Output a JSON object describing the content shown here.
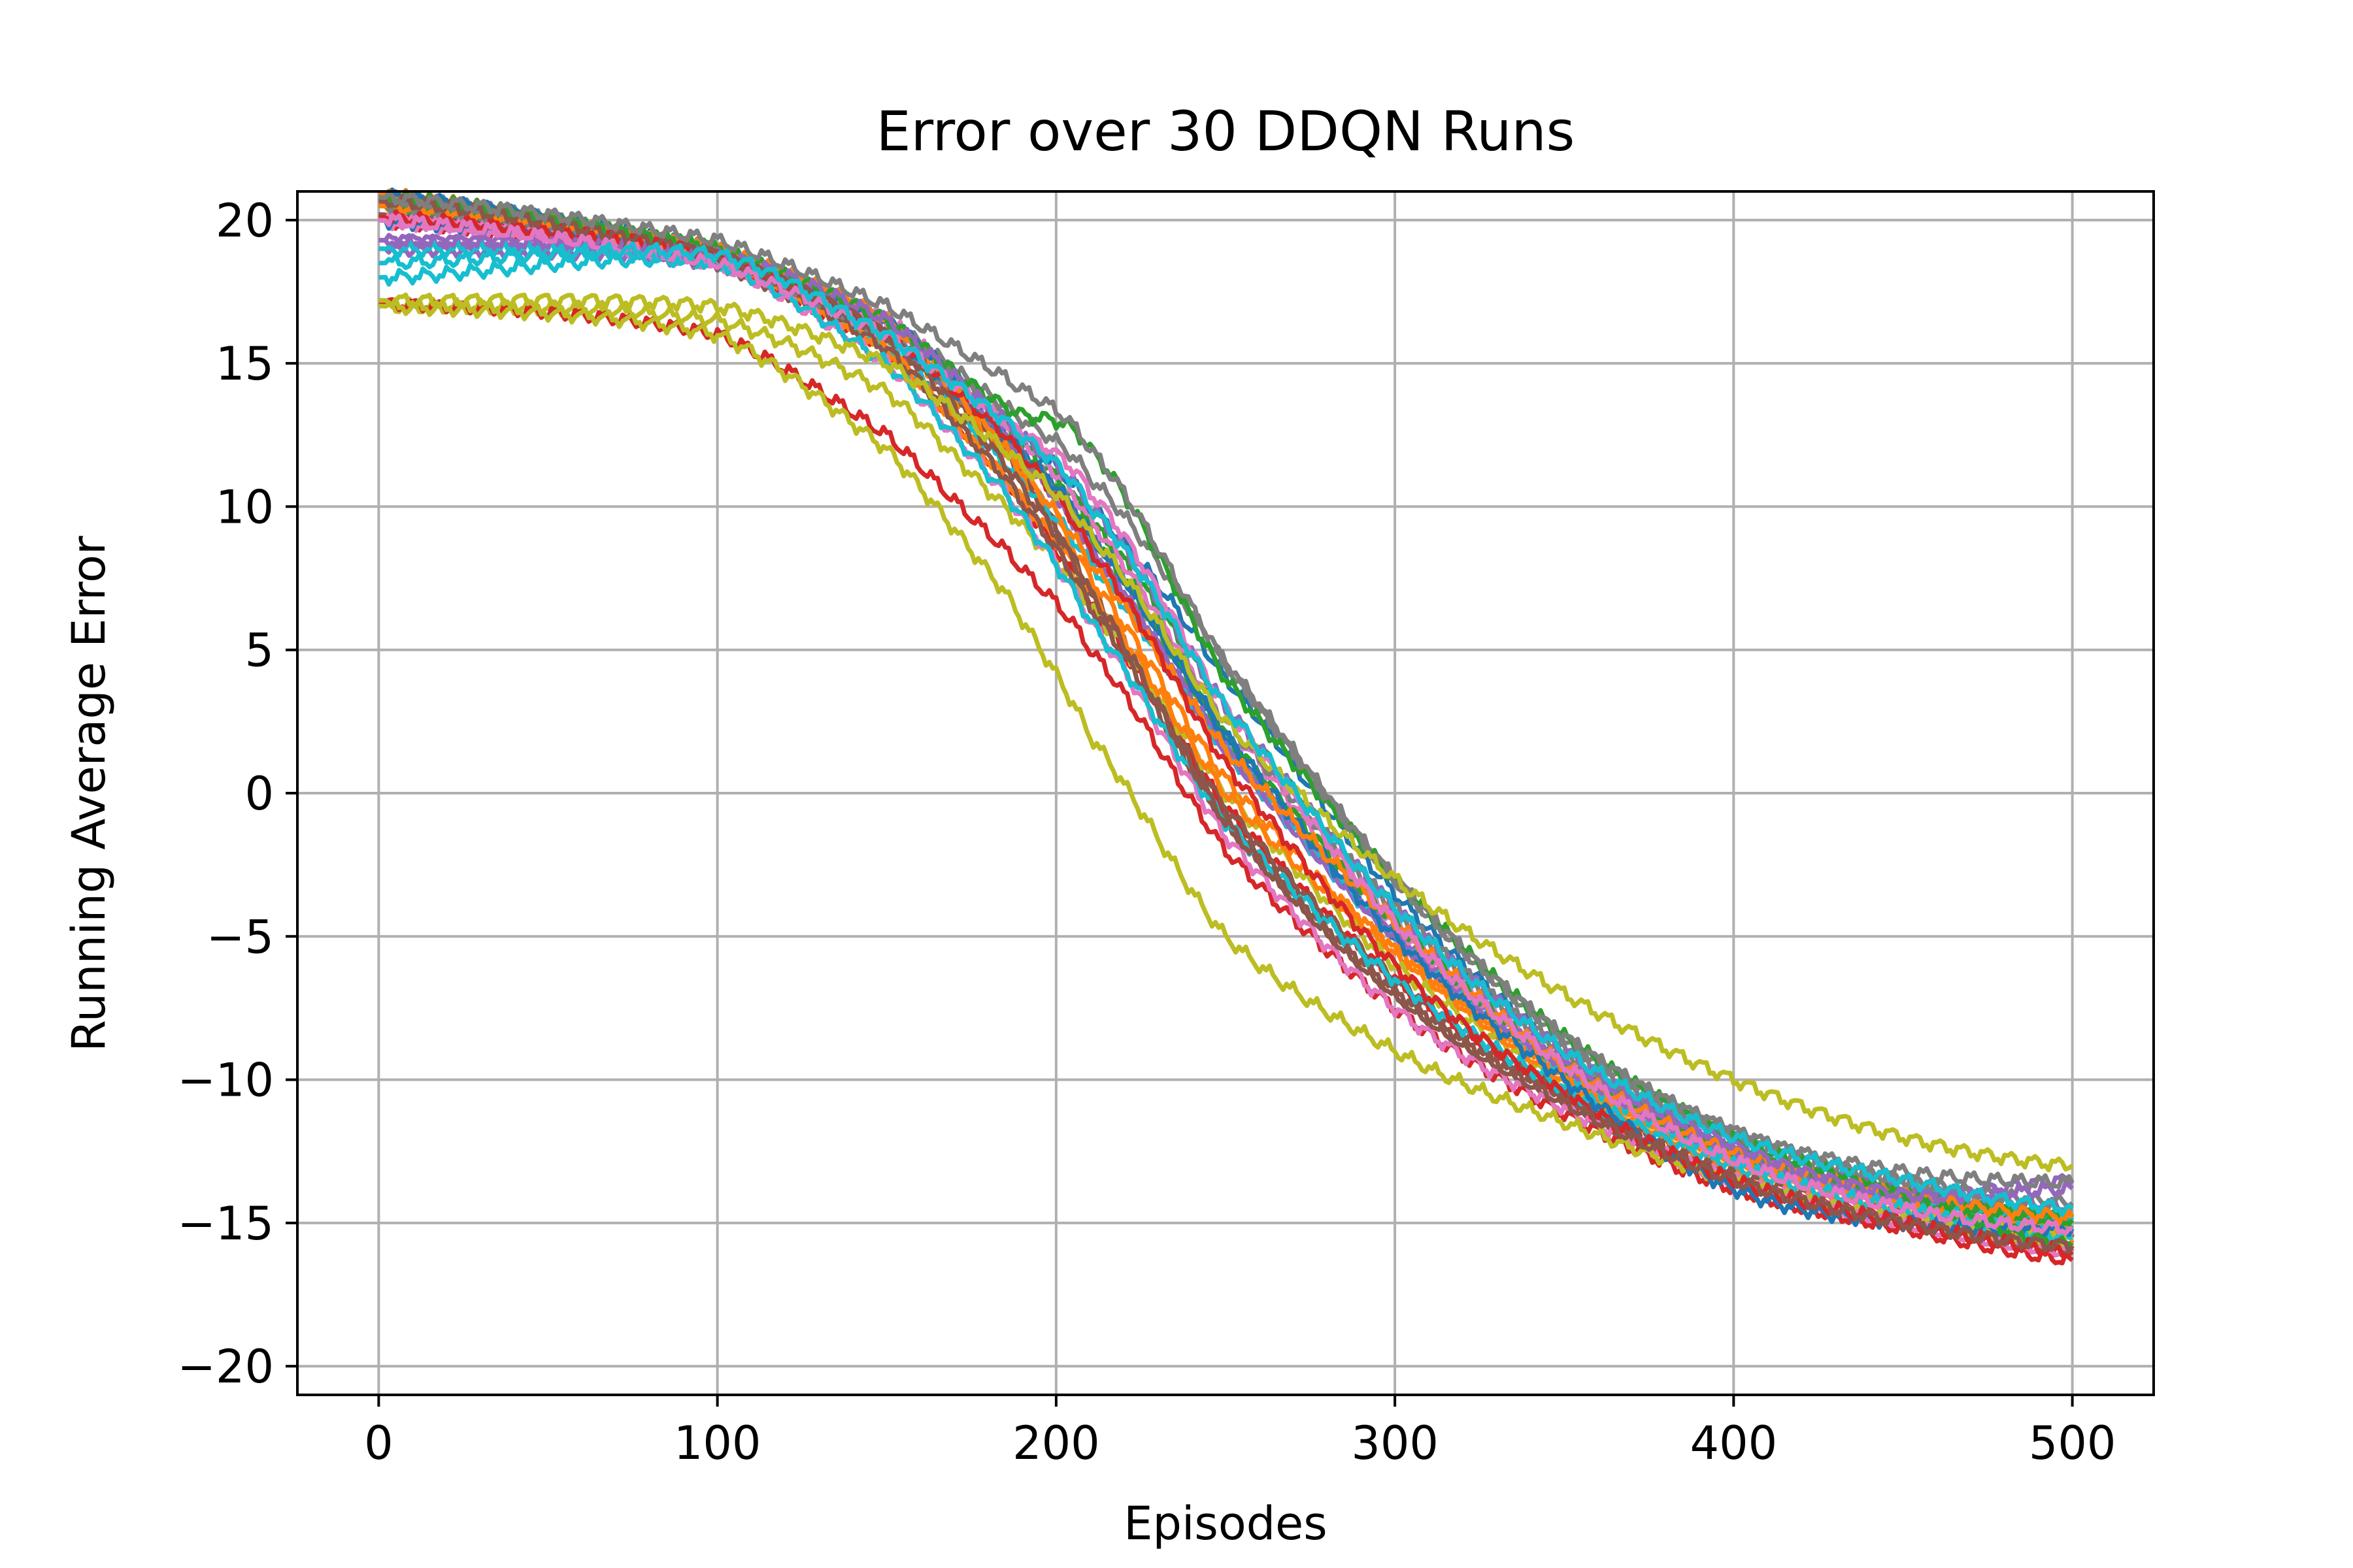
{
  "chart_data": {
    "type": "line",
    "title": "Error over 30 DDQN Runs",
    "xlabel": "Episodes",
    "ylabel": "Running Average Error",
    "xlim": [
      -24,
      524
    ],
    "ylim": [
      -21,
      21
    ],
    "xticks": [
      0,
      100,
      200,
      300,
      400,
      500
    ],
    "yticks": [
      20,
      15,
      10,
      5,
      0,
      -5,
      -10,
      -15,
      -20
    ],
    "xtick_labels": [
      "0",
      "100",
      "200",
      "300",
      "400",
      "500"
    ],
    "ytick_labels": [
      "20",
      "15",
      "10",
      "5",
      "0",
      "−5",
      "−10",
      "−15",
      "−20"
    ],
    "grid": true,
    "legend": "none",
    "palette": [
      "#1f77b4",
      "#ff7f0e",
      "#2ca02c",
      "#d62728",
      "#9467bd",
      "#8c564b",
      "#e377c2",
      "#7f7f7f",
      "#bcbd22",
      "#17becf"
    ],
    "series": [
      {
        "x": [
          0,
          100,
          150,
          185,
          210,
          250,
          300,
          350,
          400,
          450,
          500
        ],
        "y": [
          20,
          18.8,
          16.5,
          12.5,
          9,
          2,
          -5,
          -9.5,
          -12.5,
          -14.2,
          -15.2
        ]
      },
      {
        "x": [
          0,
          100,
          150,
          185,
          210,
          250,
          300,
          350,
          400,
          450,
          500
        ],
        "y": [
          20.5,
          19,
          16,
          12,
          7.5,
          0.5,
          -5.5,
          -10,
          -13,
          -14.5,
          -15.6
        ]
      },
      {
        "x": [
          0,
          100,
          150,
          185,
          210,
          250,
          300,
          350,
          400,
          450,
          500
        ],
        "y": [
          20.8,
          18.9,
          16.5,
          12.8,
          9.5,
          3,
          -4,
          -9,
          -12.5,
          -14,
          -15
        ]
      },
      {
        "x": [
          0,
          100,
          150,
          185,
          210,
          250,
          300,
          350,
          400,
          450,
          500
        ],
        "y": [
          20,
          18.5,
          15.5,
          11,
          6.5,
          -0.5,
          -6.5,
          -10.5,
          -13.5,
          -15,
          -16
        ]
      },
      {
        "x": [
          0,
          100,
          150,
          185,
          210,
          250,
          300,
          350,
          400,
          450,
          500
        ],
        "y": [
          19,
          18.5,
          16,
          12.5,
          8.5,
          1.5,
          -5,
          -9.5,
          -12.5,
          -13.8,
          -14.5
        ]
      },
      {
        "x": [
          0,
          100,
          150,
          185,
          210,
          250,
          300,
          350,
          400,
          450,
          500
        ],
        "y": [
          20.6,
          18.8,
          16,
          12,
          7,
          -0.5,
          -6.5,
          -10.5,
          -13.2,
          -14.6,
          -15.5
        ]
      },
      {
        "x": [
          0,
          100,
          150,
          185,
          210,
          250,
          300,
          350,
          400,
          450,
          500
        ],
        "y": [
          20,
          18.5,
          16.5,
          13,
          9.5,
          2.5,
          -4.5,
          -9.5,
          -12.8,
          -14.4,
          -15.3
        ]
      },
      {
        "x": [
          0,
          100,
          150,
          185,
          210,
          250,
          300,
          350,
          400,
          450,
          500
        ],
        "y": [
          20.8,
          19,
          16.5,
          13.5,
          11,
          4.5,
          -3,
          -8.5,
          -11.8,
          -13.5,
          -14.5
        ]
      },
      {
        "x": [
          0,
          100,
          150,
          185,
          210,
          250,
          300,
          350,
          400,
          450,
          500
        ],
        "y": [
          17,
          16.5,
          14,
          10,
          6.5,
          0,
          -6,
          -10,
          -13,
          -14.5,
          -15.2
        ]
      },
      {
        "x": [
          0,
          100,
          150,
          185,
          210,
          250,
          300,
          350,
          400,
          450,
          500
        ],
        "y": [
          18,
          18.5,
          15.5,
          11.5,
          8,
          1.5,
          -5,
          -9.8,
          -12.8,
          -14.2,
          -14.8
        ]
      },
      {
        "x": [
          0,
          100,
          150,
          185,
          210,
          250,
          300,
          350,
          400,
          450,
          500
        ],
        "y": [
          20.9,
          19,
          16.5,
          13,
          10,
          4,
          -3.5,
          -9,
          -12.5,
          -14,
          -14.8
        ]
      },
      {
        "x": [
          0,
          100,
          150,
          185,
          210,
          250,
          300,
          350,
          400,
          450,
          500
        ],
        "y": [
          20.9,
          18.8,
          15.5,
          11,
          7,
          0,
          -5.5,
          -10,
          -13,
          -14.5,
          -15.3
        ]
      },
      {
        "x": [
          0,
          100,
          150,
          185,
          210,
          250,
          300,
          350,
          400,
          450,
          500
        ],
        "y": [
          20.5,
          19,
          16,
          12.5,
          9,
          2,
          -4.5,
          -9.5,
          -12.5,
          -14,
          -14.9
        ]
      },
      {
        "x": [
          0,
          100,
          150,
          185,
          210,
          250,
          300,
          350,
          400,
          450,
          500
        ],
        "y": [
          17.1,
          16,
          12.5,
          8.5,
          5,
          -2,
          -7.5,
          -11.2,
          -13.8,
          -15.2,
          -16.3
        ]
      },
      {
        "x": [
          0,
          100,
          150,
          185,
          210,
          250,
          300,
          350,
          400,
          450,
          500
        ],
        "y": [
          19.3,
          18.8,
          16,
          12.5,
          8.5,
          1.5,
          -5,
          -9.5,
          -12.5,
          -14,
          -13.5
        ]
      },
      {
        "x": [
          0,
          100,
          150,
          185,
          210,
          250,
          300,
          350,
          400,
          450,
          500
        ],
        "y": [
          20.2,
          18.5,
          15.5,
          11,
          6.5,
          -1,
          -7,
          -10.8,
          -13.5,
          -14.8,
          -15.8
        ]
      },
      {
        "x": [
          0,
          100,
          150,
          185,
          210,
          250,
          300,
          350,
          400,
          450,
          500
        ],
        "y": [
          20,
          18.5,
          15,
          10.5,
          6,
          -1.5,
          -7.5,
          -11,
          -13.5,
          -15,
          -16
        ]
      },
      {
        "x": [
          0,
          100,
          150,
          185,
          210,
          250,
          300,
          350,
          400,
          450,
          500
        ],
        "y": [
          20.5,
          18.8,
          16,
          12.5,
          9,
          2.5,
          -4,
          -9,
          -12,
          -13.5,
          -14.3
        ]
      },
      {
        "x": [
          0,
          100,
          150,
          185,
          210,
          250,
          300,
          350,
          400,
          450,
          500
        ],
        "y": [
          17,
          16,
          12,
          7,
          2,
          -5,
          -9,
          -11.5,
          -13.5,
          -14.8,
          -15.5
        ]
      },
      {
        "x": [
          0,
          100,
          150,
          185,
          210,
          250,
          300,
          350,
          400,
          450,
          500
        ],
        "y": [
          19,
          18.5,
          15,
          10.5,
          6,
          -1,
          -6.5,
          -10.3,
          -13,
          -14.5,
          -15.5
        ]
      },
      {
        "x": [
          0,
          100,
          150,
          185,
          210,
          250,
          300,
          350,
          400,
          450,
          500
        ],
        "y": [
          20,
          18.8,
          16,
          12.5,
          9,
          2,
          -5,
          -10,
          -13.8,
          -15,
          -15.2
        ]
      },
      {
        "x": [
          0,
          100,
          150,
          185,
          210,
          250,
          300,
          350,
          400,
          450,
          500
        ],
        "y": [
          20.5,
          19,
          16.5,
          12,
          8,
          1.5,
          -4.5,
          -9.5,
          -12.5,
          -14,
          -14.8
        ]
      },
      {
        "x": [
          0,
          100,
          150,
          185,
          210,
          250,
          300,
          350,
          400,
          450,
          500
        ],
        "y": [
          20.8,
          19,
          16.5,
          13.5,
          12,
          4,
          -3,
          -8.5,
          -12,
          -14,
          -15.8
        ]
      },
      {
        "x": [
          0,
          100,
          150,
          185,
          210,
          250,
          300,
          350,
          400,
          450,
          500
        ],
        "y": [
          20.1,
          18.8,
          16,
          12.5,
          8.5,
          1,
          -6,
          -10.5,
          -13.5,
          -15,
          -16
        ]
      },
      {
        "x": [
          0,
          100,
          150,
          185,
          210,
          250,
          300,
          350,
          400,
          450,
          500
        ],
        "y": [
          19.3,
          18.8,
          16.5,
          13,
          10,
          3,
          -4,
          -9,
          -12.3,
          -14,
          -13.8
        ]
      },
      {
        "x": [
          0,
          100,
          150,
          185,
          210,
          250,
          300,
          350,
          400,
          450,
          500
        ],
        "y": [
          20.7,
          18.8,
          16,
          11.5,
          7,
          -1,
          -7,
          -10.8,
          -13.5,
          -15,
          -15.8
        ]
      },
      {
        "x": [
          0,
          100,
          150,
          185,
          210,
          250,
          300,
          350,
          400,
          450,
          500
        ],
        "y": [
          20,
          18.5,
          16,
          13,
          10.5,
          3,
          -4.5,
          -9.5,
          -12.8,
          -14.5,
          -15.2
        ]
      },
      {
        "x": [
          0,
          100,
          150,
          185,
          210,
          250,
          300,
          350,
          400,
          450,
          500
        ],
        "y": [
          20.8,
          19.3,
          17,
          14.5,
          12,
          4.5,
          -3,
          -8.5,
          -11.8,
          -13.2,
          -13.6
        ]
      },
      {
        "x": [
          0,
          100,
          150,
          185,
          210,
          250,
          300,
          350,
          400,
          450,
          500
        ],
        "y": [
          17.2,
          17,
          15,
          12,
          9,
          2.5,
          -3,
          -7,
          -10,
          -12,
          -13
        ]
      },
      {
        "x": [
          0,
          100,
          150,
          185,
          210,
          250,
          300,
          350,
          400,
          450,
          500
        ],
        "y": [
          18.5,
          18.8,
          16,
          13,
          10,
          3,
          -4,
          -9,
          -12,
          -13.5,
          -14.5
        ]
      }
    ]
  }
}
